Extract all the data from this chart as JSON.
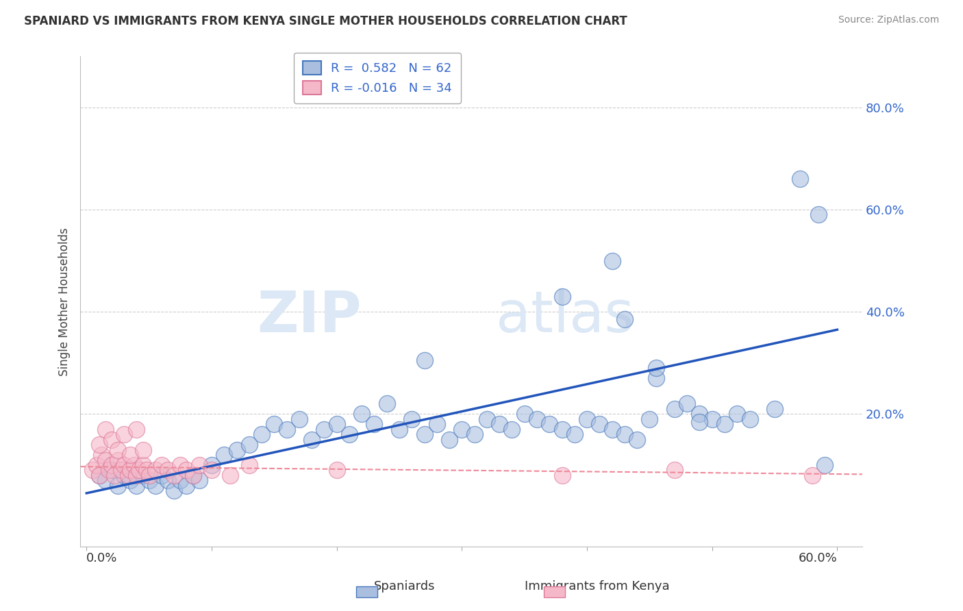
{
  "title": "SPANIARD VS IMMIGRANTS FROM KENYA SINGLE MOTHER HOUSEHOLDS CORRELATION CHART",
  "source": "Source: ZipAtlas.com",
  "ylabel": "Single Mother Households",
  "ytick_labels": [
    "20.0%",
    "40.0%",
    "60.0%",
    "80.0%"
  ],
  "ytick_vals": [
    0.2,
    0.4,
    0.6,
    0.8
  ],
  "xmin": -0.005,
  "xmax": 0.62,
  "ymin": -0.06,
  "ymax": 0.9,
  "blue_R": 0.582,
  "blue_N": 62,
  "pink_R": -0.016,
  "pink_N": 34,
  "blue_fill_color": "#aabfe0",
  "blue_edge_color": "#4477bb",
  "pink_fill_color": "#f5b8c8",
  "pink_edge_color": "#dd7799",
  "blue_line_color": "#2255bb",
  "pink_line_color": "#ee8899",
  "text_color": "#3366cc",
  "legend_label_blue": "Spaniards",
  "legend_label_pink": "Immigrants from Kenya",
  "blue_scatter_x": [
    0.01,
    0.015,
    0.02,
    0.025,
    0.03,
    0.035,
    0.04,
    0.045,
    0.05,
    0.055,
    0.06,
    0.065,
    0.07,
    0.075,
    0.08,
    0.085,
    0.09,
    0.1,
    0.11,
    0.12,
    0.13,
    0.14,
    0.15,
    0.16,
    0.17,
    0.18,
    0.19,
    0.2,
    0.21,
    0.22,
    0.23,
    0.24,
    0.25,
    0.26,
    0.27,
    0.28,
    0.29,
    0.3,
    0.31,
    0.32,
    0.33,
    0.34,
    0.35,
    0.36,
    0.37,
    0.38,
    0.39,
    0.4,
    0.41,
    0.42,
    0.43,
    0.44,
    0.45,
    0.47,
    0.48,
    0.49,
    0.5,
    0.51,
    0.52,
    0.53,
    0.55,
    0.59
  ],
  "blue_scatter_y": [
    0.08,
    0.07,
    0.09,
    0.06,
    0.08,
    0.07,
    0.06,
    0.08,
    0.07,
    0.06,
    0.08,
    0.07,
    0.05,
    0.07,
    0.06,
    0.08,
    0.07,
    0.1,
    0.12,
    0.13,
    0.14,
    0.16,
    0.18,
    0.17,
    0.19,
    0.15,
    0.17,
    0.18,
    0.16,
    0.2,
    0.18,
    0.22,
    0.17,
    0.19,
    0.16,
    0.18,
    0.15,
    0.17,
    0.16,
    0.19,
    0.18,
    0.17,
    0.2,
    0.19,
    0.18,
    0.17,
    0.16,
    0.19,
    0.18,
    0.17,
    0.16,
    0.15,
    0.19,
    0.21,
    0.22,
    0.2,
    0.19,
    0.18,
    0.2,
    0.19,
    0.21,
    0.1
  ],
  "blue_outliers_x": [
    0.27,
    0.38,
    0.42,
    0.43,
    0.455,
    0.455,
    0.49,
    0.57,
    0.585
  ],
  "blue_outliers_y": [
    0.305,
    0.43,
    0.5,
    0.385,
    0.27,
    0.29,
    0.185,
    0.66,
    0.59
  ],
  "pink_scatter_x": [
    0.005,
    0.008,
    0.01,
    0.012,
    0.015,
    0.018,
    0.02,
    0.022,
    0.025,
    0.028,
    0.03,
    0.033,
    0.035,
    0.038,
    0.04,
    0.042,
    0.045,
    0.048,
    0.05,
    0.055,
    0.06,
    0.065,
    0.07,
    0.075,
    0.08,
    0.085,
    0.09,
    0.1,
    0.115,
    0.13,
    0.2,
    0.38,
    0.47,
    0.58
  ],
  "pink_scatter_y": [
    0.09,
    0.1,
    0.08,
    0.12,
    0.11,
    0.09,
    0.1,
    0.08,
    0.11,
    0.09,
    0.1,
    0.08,
    0.09,
    0.1,
    0.08,
    0.09,
    0.1,
    0.09,
    0.08,
    0.09,
    0.1,
    0.09,
    0.08,
    0.1,
    0.09,
    0.08,
    0.1,
    0.09,
    0.08,
    0.1,
    0.09,
    0.08,
    0.09,
    0.08
  ],
  "pink_outliers_x": [
    0.01,
    0.015,
    0.02,
    0.025,
    0.03,
    0.035,
    0.04,
    0.045
  ],
  "pink_outliers_y": [
    0.14,
    0.17,
    0.15,
    0.13,
    0.16,
    0.12,
    0.17,
    0.13
  ],
  "blue_trend_x": [
    0.0,
    0.6
  ],
  "blue_trend_y": [
    0.045,
    0.365
  ],
  "pink_trend_x": [
    -0.005,
    0.62
  ],
  "pink_trend_y": [
    0.097,
    0.082
  ]
}
